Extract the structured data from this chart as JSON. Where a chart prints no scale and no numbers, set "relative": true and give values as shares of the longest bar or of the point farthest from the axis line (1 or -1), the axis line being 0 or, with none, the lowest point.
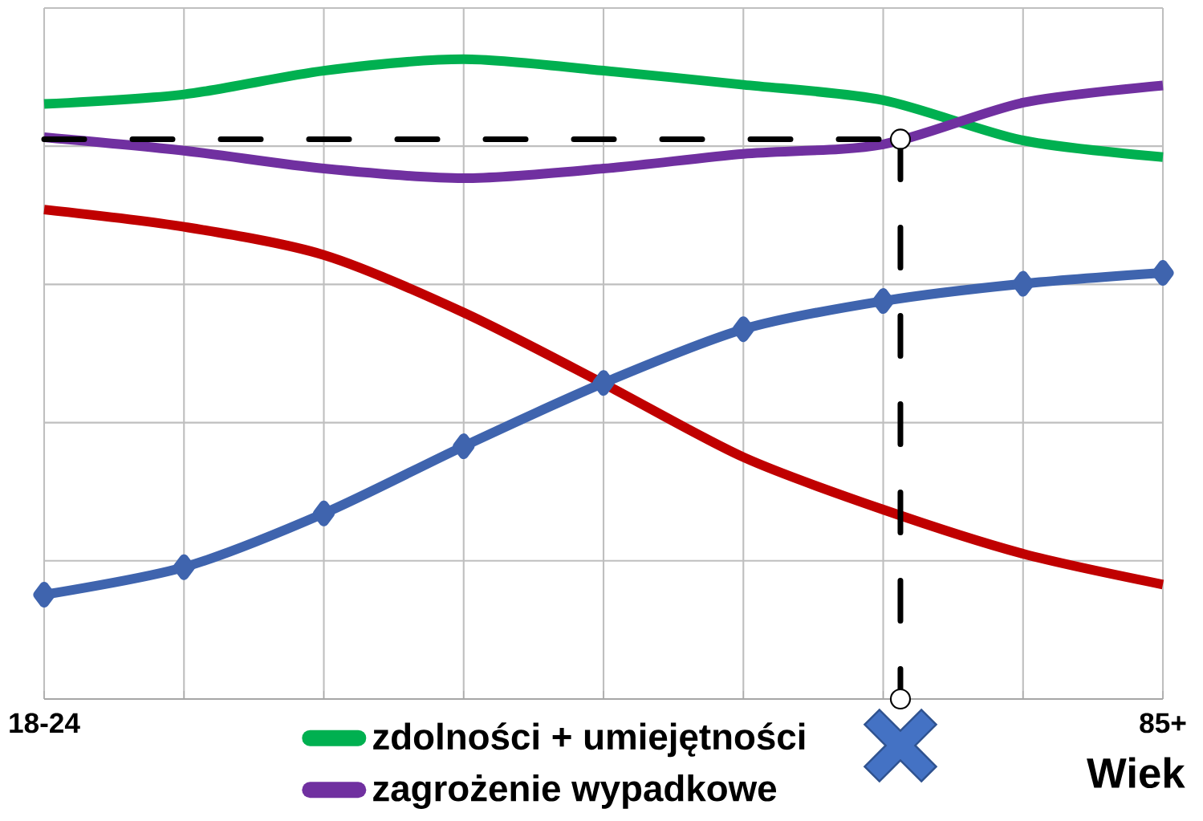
{
  "chart_data": {
    "type": "line",
    "relative": true,
    "categories": [
      "18-24",
      null,
      null,
      null,
      null,
      null,
      null,
      null,
      "85+"
    ],
    "xlabel": "Wiek",
    "grid": true,
    "legend": "bottom",
    "line_style": "solid",
    "marker": "none",
    "series": [
      {
        "name": "zdolności + umiejętności",
        "color": "#00b050",
        "values": [
          0.93,
          0.945,
          0.982,
          1,
          0.982,
          0.96,
          0.936,
          0.873,
          0.847
        ]
      },
      {
        "name": "zagrożenie wypadkowe",
        "color": "#7030a0",
        "values": [
          0.878,
          0.857,
          0.829,
          0.814,
          0.829,
          0.852,
          0.867,
          0.932,
          0.959
        ]
      },
      {
        "color": "#c00000",
        "values": [
          0.765,
          0.738,
          0.694,
          0.604,
          0.493,
          0.378,
          0.296,
          0.227,
          0.179
        ]
      },
      {
        "color": "#3f64ae",
        "marker": "diamond",
        "values": [
          0.163,
          0.206,
          0.29,
          0.395,
          0.494,
          0.578,
          0.622,
          0.649,
          0.666
        ]
      }
    ],
    "ref_lines": [
      {
        "axis": "y",
        "value": 0.875,
        "color": "#000000",
        "line_style": "dashed"
      }
    ]
  }
}
